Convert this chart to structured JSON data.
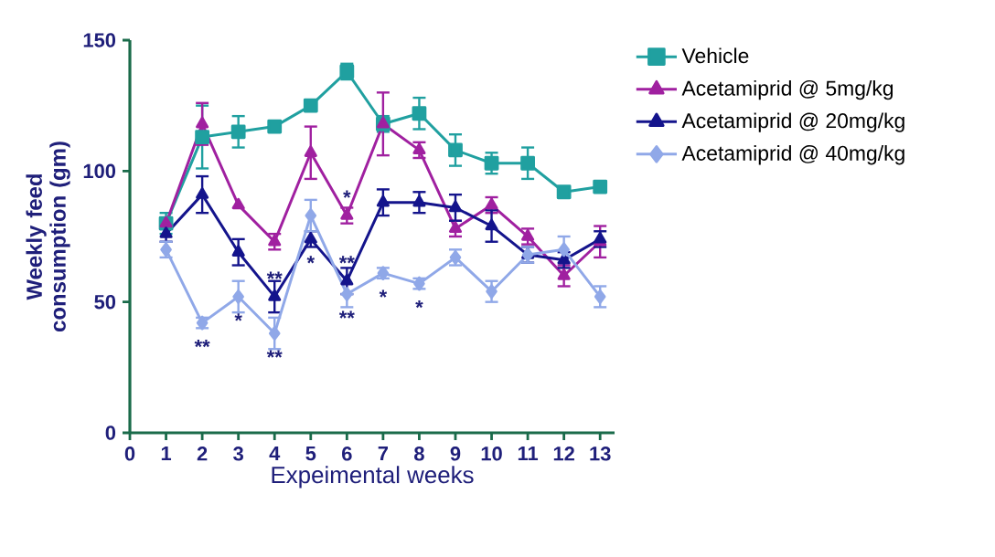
{
  "chart_data": {
    "type": "line",
    "xlabel": "Expeimental weeks",
    "ylabel": "Weekly feed consumption (gm)",
    "x": [
      1,
      2,
      3,
      4,
      5,
      6,
      7,
      8,
      9,
      10,
      11,
      12,
      13
    ],
    "xlim": [
      0,
      13.4
    ],
    "xticks": [
      0,
      1,
      2,
      3,
      4,
      5,
      6,
      7,
      8,
      9,
      10,
      11,
      12,
      13
    ],
    "ylim": [
      0,
      150
    ],
    "yticks": [
      0,
      50,
      100,
      150
    ],
    "grid": false,
    "legend": "right",
    "series": [
      {
        "name": "Vehicle",
        "color": "#20a0a0",
        "marker": "square",
        "values": [
          80,
          113,
          115,
          117,
          125,
          138,
          118,
          122,
          108,
          103,
          103,
          92,
          94
        ],
        "errors": [
          4,
          12,
          6,
          2,
          2,
          3,
          3,
          6,
          6,
          4,
          6,
          2,
          2
        ]
      },
      {
        "name": "Acetamiprid @ 5mg/kg",
        "color": "#a020a0",
        "marker": "triangle",
        "values": [
          80,
          118,
          87,
          73,
          107,
          83,
          118,
          108,
          78,
          87,
          75,
          60,
          73
        ],
        "errors": [
          null,
          8,
          null,
          3,
          10,
          3,
          12,
          3,
          3,
          3,
          3,
          4,
          6
        ]
      },
      {
        "name": "Acetamiprid @ 20mg/kg",
        "color": "#14148c",
        "marker": "triangle",
        "values": [
          76,
          91,
          69,
          52,
          74,
          58,
          88,
          88,
          86,
          79,
          68,
          66,
          74
        ],
        "errors": [
          3,
          7,
          5,
          6,
          3,
          5,
          5,
          4,
          5,
          6,
          3,
          3,
          3
        ]
      },
      {
        "name": "Acetamiprid @ 40mg/kg",
        "color": "#90a8e8",
        "marker": "diamond",
        "values": [
          70,
          42,
          52,
          38,
          83,
          53,
          61,
          57,
          67,
          54,
          68,
          70,
          52
        ],
        "errors": [
          3,
          2,
          6,
          6,
          6,
          [
            48,
            53
          ],
          2,
          2,
          3,
          4,
          3,
          5,
          4
        ]
      }
    ],
    "annotations": [
      {
        "text": "**",
        "x": 2,
        "y": 42
      },
      {
        "text": "*",
        "x": 3,
        "y": 52
      },
      {
        "text": "**",
        "x": 4,
        "y": 52
      },
      {
        "text": "**",
        "x": 4,
        "y": 38
      },
      {
        "text": "*",
        "x": 5,
        "y": 74
      },
      {
        "text": "*",
        "x": 6,
        "y": 83
      },
      {
        "text": "**",
        "x": 6,
        "y": 58
      },
      {
        "text": "**",
        "x": 6,
        "y": 53
      },
      {
        "text": "*",
        "x": 7,
        "y": 61
      },
      {
        "text": "*",
        "x": 8,
        "y": 57
      }
    ]
  }
}
